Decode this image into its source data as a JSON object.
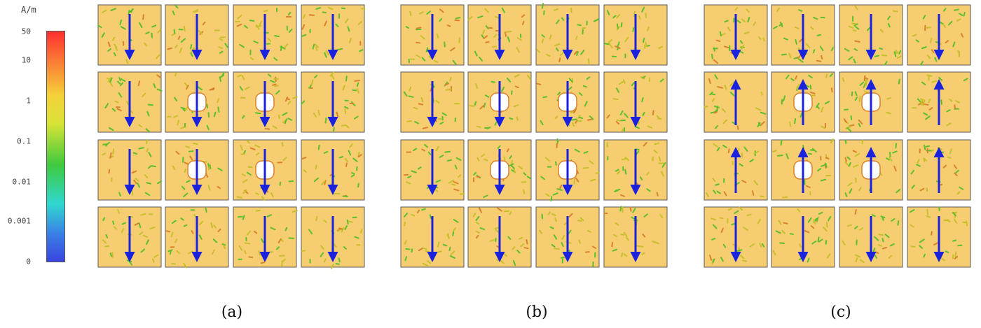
{
  "scale": {
    "unit": "A/m",
    "ticks": [
      "50",
      "10",
      "1",
      "0.1",
      "0.01",
      "0.001",
      "0"
    ]
  },
  "colors": {
    "cell_fill": "#f7cd72",
    "cell_border": "#5a5a5a",
    "arrow": "#1a22dd",
    "hole": "#ffffff",
    "field_green": "#5cbf2a",
    "field_yellow": "#c6c02a",
    "field_orange": "#d9822b"
  },
  "panels": [
    {
      "caption": "(a)",
      "arrows": [
        [
          "down",
          "down",
          "down",
          "down"
        ],
        [
          "down",
          "down",
          "down",
          "down"
        ],
        [
          "down",
          "down",
          "down",
          "down"
        ],
        [
          "down",
          "down",
          "down",
          "down"
        ]
      ],
      "holes": [
        [
          false,
          false,
          false,
          false
        ],
        [
          false,
          true,
          true,
          false
        ],
        [
          false,
          true,
          true,
          false
        ],
        [
          false,
          false,
          false,
          false
        ]
      ]
    },
    {
      "caption": "(b)",
      "arrows": [
        [
          "down",
          "down",
          "down",
          "down"
        ],
        [
          "down",
          "down",
          "down",
          "down"
        ],
        [
          "down",
          "down",
          "down",
          "down"
        ],
        [
          "down",
          "down",
          "down",
          "down"
        ]
      ],
      "holes": [
        [
          false,
          false,
          false,
          false
        ],
        [
          false,
          true,
          true,
          false
        ],
        [
          false,
          true,
          true,
          false
        ],
        [
          false,
          false,
          false,
          false
        ]
      ]
    },
    {
      "caption": "(c)",
      "arrows": [
        [
          "down",
          "down",
          "down",
          "down"
        ],
        [
          "up",
          "up",
          "up",
          "up"
        ],
        [
          "up",
          "up",
          "up",
          "up"
        ],
        [
          "down",
          "down",
          "down",
          "down"
        ]
      ],
      "holes": [
        [
          false,
          false,
          false,
          false
        ],
        [
          false,
          true,
          true,
          false
        ],
        [
          false,
          true,
          true,
          false
        ],
        [
          false,
          false,
          false,
          false
        ]
      ]
    }
  ]
}
